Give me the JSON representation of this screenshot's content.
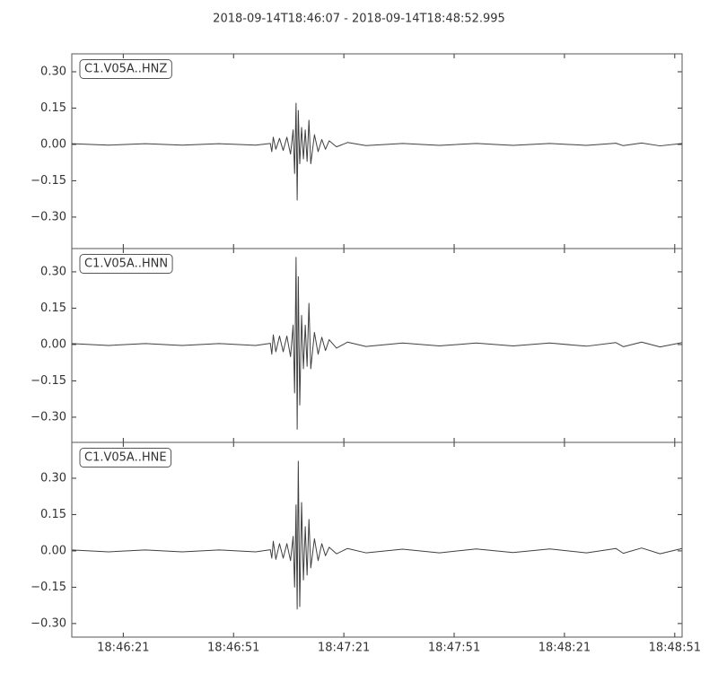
{
  "title": "2018-09-14T18:46:07  -  2018-09-14T18:48:52.995",
  "chart_data": [
    {
      "type": "line",
      "xlim": [
        0,
        166
      ],
      "ylim": [
        -0.43,
        0.374
      ],
      "yticks": [
        {
          "value": 0.3,
          "label": "0.30"
        },
        {
          "value": 0.15,
          "label": "0.15"
        },
        {
          "value": 0,
          "label": "0.00"
        },
        {
          "value": -0.15,
          "label": "−0.15"
        },
        {
          "value": -0.3,
          "label": "−0.30"
        }
      ],
      "x": [
        0,
        10,
        20,
        30,
        40,
        50,
        54,
        54.4,
        54.8,
        55.5,
        56.5,
        57.5,
        58.5,
        59.5,
        60.2,
        60.6,
        61.0,
        61.3,
        61.6,
        62.0,
        62.5,
        63.0,
        63.5,
        64.0,
        64.5,
        65.0,
        66,
        67,
        68,
        69,
        70,
        72,
        75,
        80,
        90,
        100,
        110,
        120,
        130,
        140,
        148,
        150,
        155,
        160,
        166
      ],
      "series": [
        {
          "name": "C1.V05A..HNZ",
          "color": "#404040",
          "values": [
            0.003,
            -0.003,
            0.003,
            -0.003,
            0.003,
            -0.003,
            0.004,
            -0.03,
            0.03,
            -0.02,
            0.025,
            -0.025,
            0.03,
            -0.04,
            0.06,
            -0.12,
            0.17,
            -0.23,
            0.14,
            -0.08,
            0.07,
            -0.06,
            0.06,
            -0.07,
            0.1,
            -0.08,
            0.04,
            -0.03,
            0.02,
            -0.02,
            0.015,
            -0.01,
            0.008,
            -0.005,
            0.004,
            -0.004,
            0.004,
            -0.004,
            0.004,
            -0.004,
            0.005,
            -0.005,
            0.006,
            -0.006,
            0.004
          ]
        }
      ]
    },
    {
      "type": "line",
      "xlim": [
        0,
        166
      ],
      "ylim": [
        -0.404,
        0.396
      ],
      "yticks": [
        {
          "value": 0.3,
          "label": "0.30"
        },
        {
          "value": 0.15,
          "label": "0.15"
        },
        {
          "value": 0,
          "label": "0.00"
        },
        {
          "value": -0.15,
          "label": "−0.15"
        },
        {
          "value": -0.3,
          "label": "−0.30"
        }
      ],
      "x": [
        0,
        10,
        20,
        30,
        40,
        50,
        54,
        54.4,
        54.8,
        55.5,
        56.5,
        57.5,
        58.5,
        59.5,
        60.2,
        60.6,
        61.0,
        61.3,
        61.6,
        62.0,
        62.5,
        63.0,
        63.5,
        64.0,
        64.5,
        65.0,
        66,
        67,
        68,
        69,
        70,
        72,
        75,
        80,
        90,
        100,
        110,
        120,
        130,
        140,
        148,
        150,
        155,
        160,
        166
      ],
      "series": [
        {
          "name": "C1.V05A..HNN",
          "color": "#404040",
          "values": [
            0.004,
            -0.004,
            0.004,
            -0.004,
            0.004,
            -0.004,
            0.005,
            -0.04,
            0.04,
            -0.03,
            0.035,
            -0.03,
            0.035,
            -0.05,
            0.08,
            -0.2,
            0.36,
            -0.35,
            0.28,
            -0.25,
            0.12,
            -0.1,
            0.08,
            -0.09,
            0.17,
            -0.1,
            0.05,
            -0.04,
            0.03,
            -0.025,
            0.02,
            -0.015,
            0.01,
            -0.008,
            0.006,
            -0.006,
            0.006,
            -0.006,
            0.006,
            -0.007,
            0.008,
            -0.009,
            0.01,
            -0.01,
            0.008
          ]
        }
      ]
    },
    {
      "type": "line",
      "xlim": [
        0,
        166
      ],
      "ylim": [
        -0.356,
        0.448
      ],
      "yticks": [
        {
          "value": 0.3,
          "label": "0.30"
        },
        {
          "value": 0.15,
          "label": "0.15"
        },
        {
          "value": 0,
          "label": "0.00"
        },
        {
          "value": -0.15,
          "label": "−0.15"
        },
        {
          "value": -0.3,
          "label": "−0.30"
        }
      ],
      "xticks": [
        {
          "value": 14,
          "label": "18:46:21"
        },
        {
          "value": 44,
          "label": "18:46:51"
        },
        {
          "value": 74,
          "label": "18:47:21"
        },
        {
          "value": 104,
          "label": "18:47:51"
        },
        {
          "value": 134,
          "label": "18:48:21"
        },
        {
          "value": 164,
          "label": "18:48:51"
        }
      ],
      "x": [
        0,
        10,
        20,
        30,
        40,
        50,
        54,
        54.4,
        54.8,
        55.5,
        56.5,
        57.5,
        58.5,
        59.5,
        60.2,
        60.6,
        61.0,
        61.3,
        61.6,
        62.0,
        62.5,
        63.0,
        63.5,
        64.0,
        64.5,
        65.0,
        66,
        67,
        68,
        69,
        70,
        72,
        75,
        80,
        90,
        100,
        110,
        120,
        130,
        140,
        148,
        150,
        155,
        160,
        166
      ],
      "series": [
        {
          "name": "C1.V05A..HNE",
          "color": "#404040",
          "values": [
            0.004,
            -0.004,
            0.004,
            -0.004,
            0.004,
            -0.004,
            0.005,
            -0.03,
            0.04,
            -0.035,
            0.03,
            -0.03,
            0.03,
            -0.04,
            0.06,
            -0.15,
            0.19,
            -0.24,
            0.37,
            -0.23,
            0.2,
            -0.12,
            0.1,
            -0.1,
            0.13,
            -0.07,
            0.05,
            -0.04,
            0.03,
            -0.02,
            0.015,
            -0.012,
            0.01,
            -0.008,
            0.007,
            -0.008,
            0.008,
            -0.007,
            0.008,
            -0.008,
            0.01,
            -0.01,
            0.012,
            -0.012,
            0.01
          ]
        }
      ]
    }
  ]
}
